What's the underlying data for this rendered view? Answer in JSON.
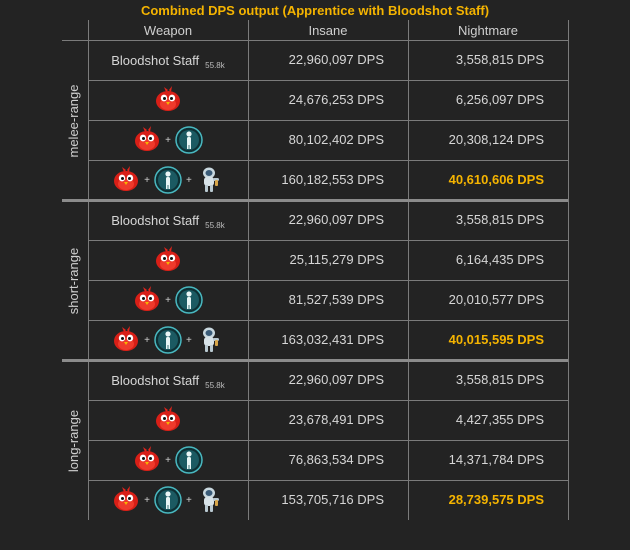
{
  "title": "Combined DPS output (Apprentice with Bloodshot Staff)",
  "headers": {
    "weapon": "Weapon",
    "insane": "Insane",
    "nightmare": "Nightmare"
  },
  "sections": [
    {
      "label": "melee-range",
      "rows": [
        {
          "weapon": "Bloodshot Staff",
          "level": "55.8k",
          "insane": "22,960,097 DPS",
          "nightmare": "3,558,815 DPS"
        },
        {
          "insane": "24,676,253 DPS",
          "nightmare": "6,256,097 DPS"
        },
        {
          "plus": "+",
          "insane": "80,102,402 DPS",
          "nightmare": "20,308,124 DPS"
        },
        {
          "plus": "+",
          "insane": "160,182,553 DPS",
          "nightmare": "40,610,606 DPS"
        }
      ]
    },
    {
      "label": "short-range",
      "rows": [
        {
          "weapon": "Bloodshot Staff",
          "level": "55.8k",
          "insane": "22,960,097 DPS",
          "nightmare": "3,558,815 DPS"
        },
        {
          "insane": "25,115,279 DPS",
          "nightmare": "6,164,435 DPS"
        },
        {
          "plus": "+",
          "insane": "81,527,539 DPS",
          "nightmare": "20,010,577 DPS"
        },
        {
          "plus": "+",
          "insane": "163,032,431 DPS",
          "nightmare": "40,015,595 DPS"
        }
      ]
    },
    {
      "label": "long-range",
      "rows": [
        {
          "weapon": "Bloodshot Staff",
          "level": "55.8k",
          "insane": "22,960,097 DPS",
          "nightmare": "3,558,815 DPS"
        },
        {
          "insane": "23,678,491 DPS",
          "nightmare": "4,427,355 DPS"
        },
        {
          "plus": "+",
          "insane": "76,863,534 DPS",
          "nightmare": "14,371,784 DPS"
        },
        {
          "plus": "+",
          "insane": "153,705,716 DPS",
          "nightmare": "28,739,575 DPS"
        }
      ]
    }
  ],
  "icons": {
    "bird": "red-bird-pet-icon",
    "buff": "teal-buff-figure-icon",
    "companion": "astronaut-companion-icon"
  },
  "colors": {
    "background": "#232323",
    "title": "#f5b400",
    "highlight": "#f5b400",
    "grid": "#7b7b7b",
    "text": "#d6d6d6"
  }
}
